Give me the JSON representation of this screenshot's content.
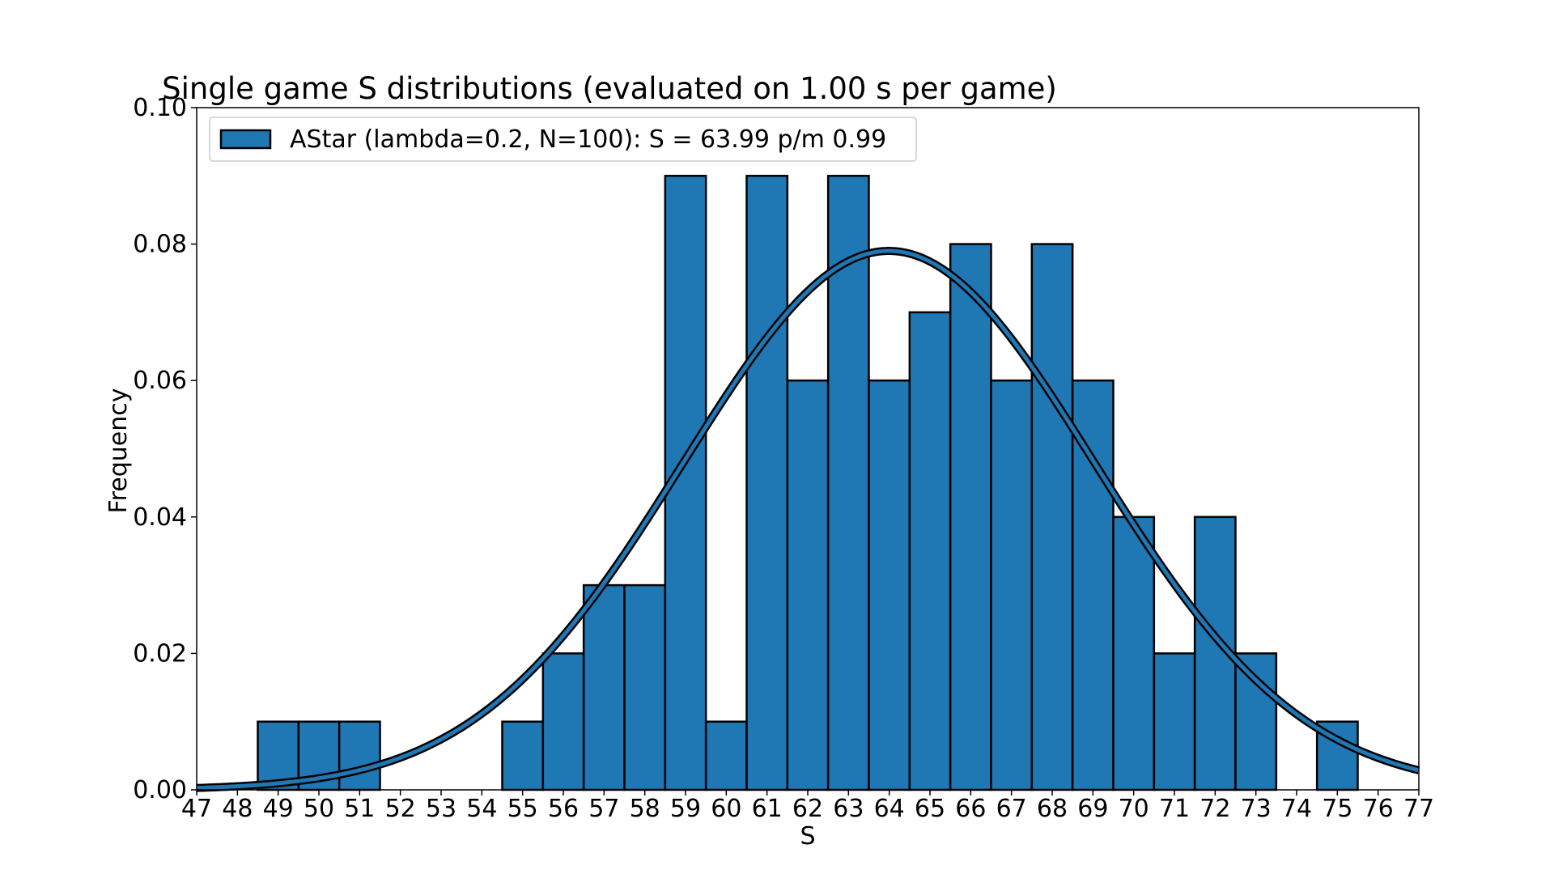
{
  "chart_data": {
    "type": "bar",
    "title": "Single game S distributions (evaluated on 1.00 s per game)",
    "xlabel": "S",
    "ylabel": "Frequency",
    "xlim": [
      47,
      77
    ],
    "ylim": [
      0,
      0.1
    ],
    "x_ticks": [
      47,
      48,
      49,
      50,
      51,
      52,
      53,
      54,
      55,
      56,
      57,
      58,
      59,
      60,
      61,
      62,
      63,
      64,
      65,
      66,
      67,
      68,
      69,
      70,
      71,
      72,
      73,
      74,
      75,
      76,
      77
    ],
    "y_ticks": [
      "0.00",
      "0.02",
      "0.04",
      "0.06",
      "0.08",
      "0.10"
    ],
    "grid": false,
    "legend_position": "top-left",
    "series": [
      {
        "name": "AStar (lambda=0.2, N=100): S = 63.99 p/m 0.99",
        "color": "#1f77b4",
        "edge_color": "#000000",
        "bin_width": 1,
        "categories": [
          49,
          50,
          51,
          52,
          53,
          54,
          55,
          56,
          57,
          58,
          59,
          60,
          61,
          62,
          63,
          64,
          65,
          66,
          67,
          68,
          69,
          70,
          71,
          72,
          73,
          74,
          75
        ],
        "values": [
          0.01,
          0.01,
          0.01,
          0,
          0,
          0,
          0.01,
          0.02,
          0.03,
          0.03,
          0.09,
          0.01,
          0.09,
          0.06,
          0.09,
          0.06,
          0.07,
          0.08,
          0.06,
          0.08,
          0.06,
          0.04,
          0.02,
          0.04,
          0.02,
          0,
          0.01
        ]
      }
    ],
    "fit_curve": {
      "type": "normal-pdf",
      "mean": 63.99,
      "std": 5.05,
      "color": "#1f77b4",
      "outline_color": "#000000"
    }
  }
}
